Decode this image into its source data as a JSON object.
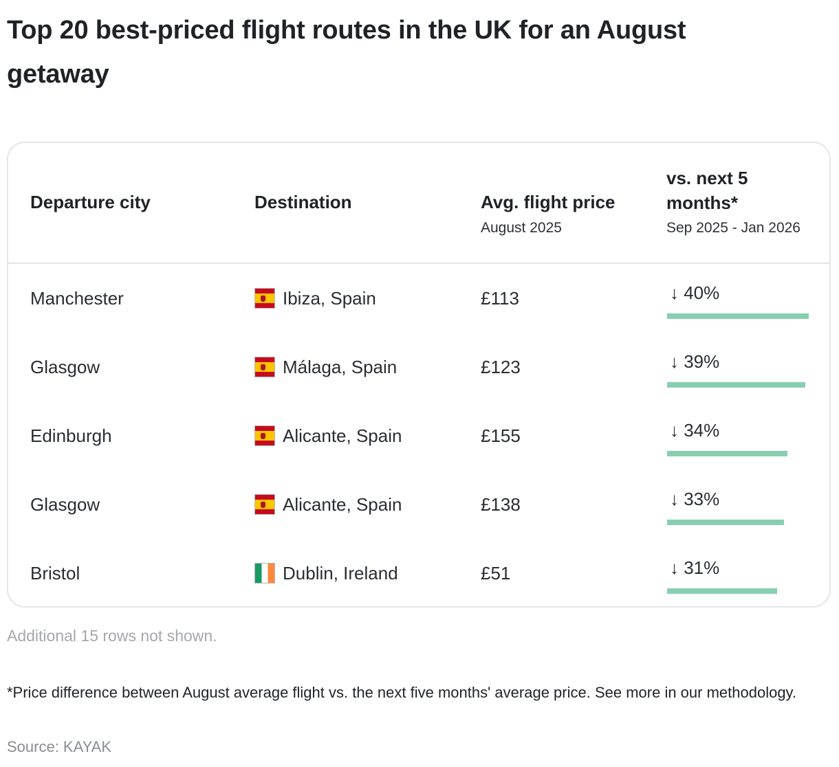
{
  "title": "Top 20 best-priced flight routes in the UK for an August getaway",
  "table": {
    "headers": {
      "departure": "Departure city",
      "destination": "Destination",
      "price": "Avg. flight price",
      "price_sub": "August 2025",
      "change_line1": "vs. next 5",
      "change_line2": "months*",
      "change_sub": "Sep 2025 - Jan 2026"
    },
    "rows": [
      {
        "departure": "Manchester",
        "flag": "spain-flag-icon",
        "destination": "Ibiza, Spain",
        "price": "£113",
        "change": "↓ 40%",
        "change_value": 40
      },
      {
        "departure": "Glasgow",
        "flag": "spain-flag-icon",
        "destination": "Málaga, Spain",
        "price": "£123",
        "change": "↓ 39%",
        "change_value": 39
      },
      {
        "departure": "Edinburgh",
        "flag": "spain-flag-icon",
        "destination": "Alicante, Spain",
        "price": "£155",
        "change": "↓ 34%",
        "change_value": 34
      },
      {
        "departure": "Glasgow",
        "flag": "spain-flag-icon",
        "destination": "Alicante, Spain",
        "price": "£138",
        "change": "↓ 33%",
        "change_value": 33
      },
      {
        "departure": "Bristol",
        "flag": "ireland-flag-icon",
        "destination": "Dublin, Ireland",
        "price": "£51",
        "change": "↓ 31%",
        "change_value": 31
      }
    ],
    "bar_color": "#87cfb0",
    "bar_max_value": 40
  },
  "hidden_rows_note": "Additional 15 rows not shown.",
  "footnote": "*Price difference between August average flight vs. the next five months' average price. See more in our methodology.",
  "source": "Source: KAYAK"
}
